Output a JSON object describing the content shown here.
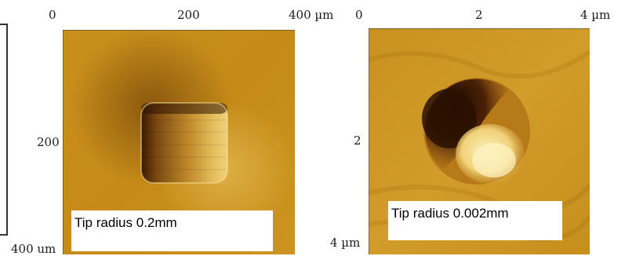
{
  "left_panel": {
    "x_tick_labels": [
      "0",
      "200",
      "400 µm"
    ],
    "y_tick_labels": [
      "200",
      "400 um"
    ],
    "caption": "Tip radius 0.2mm"
  },
  "right_panel": {
    "x_tick_labels": [
      "0",
      "2",
      "4 µm"
    ],
    "y_tick_labels": [
      "2",
      "4 µm"
    ],
    "caption": "Tip radius 0.002mm"
  },
  "colors": {
    "surface_base": "#c8901a",
    "surface_dark": "#3a1600",
    "surface_light": "#f4e4a0",
    "frame": "#222222"
  }
}
